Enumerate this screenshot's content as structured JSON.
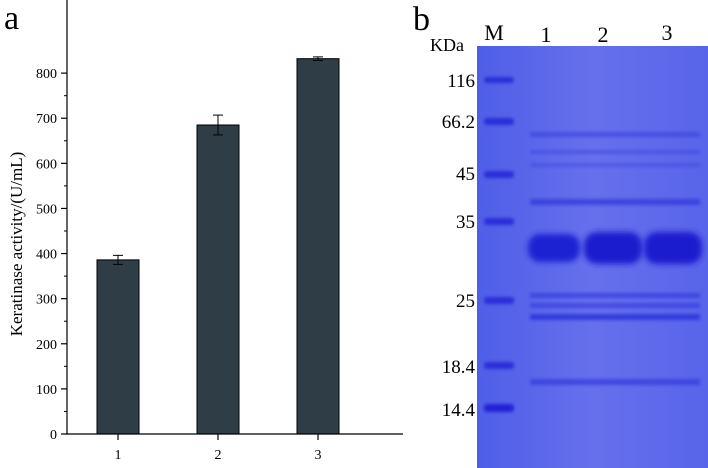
{
  "panel_a": {
    "label": "a",
    "chart_data": {
      "type": "bar",
      "categories": [
        "1",
        "2",
        "3"
      ],
      "values": [
        386,
        685,
        832
      ],
      "errors": [
        10,
        22,
        4
      ],
      "xlabel": "",
      "ylabel": "Keratinase activity/(U/mL)",
      "ylim": [
        0,
        900
      ],
      "yticks": [
        "0",
        "100",
        "200",
        "300",
        "400",
        "500",
        "600",
        "700",
        "800"
      ],
      "bar_color": "#2f3e46"
    }
  },
  "panel_b": {
    "label": "b",
    "unit_label": "KDa",
    "lane_labels": [
      "M",
      "1",
      "2",
      "3"
    ],
    "marker_sizes": [
      "116",
      "66.2",
      "45",
      "35",
      "25",
      "18.4",
      "14.4"
    ],
    "gel_color": "#5a66e8",
    "band_color": "#2a2ed8"
  }
}
